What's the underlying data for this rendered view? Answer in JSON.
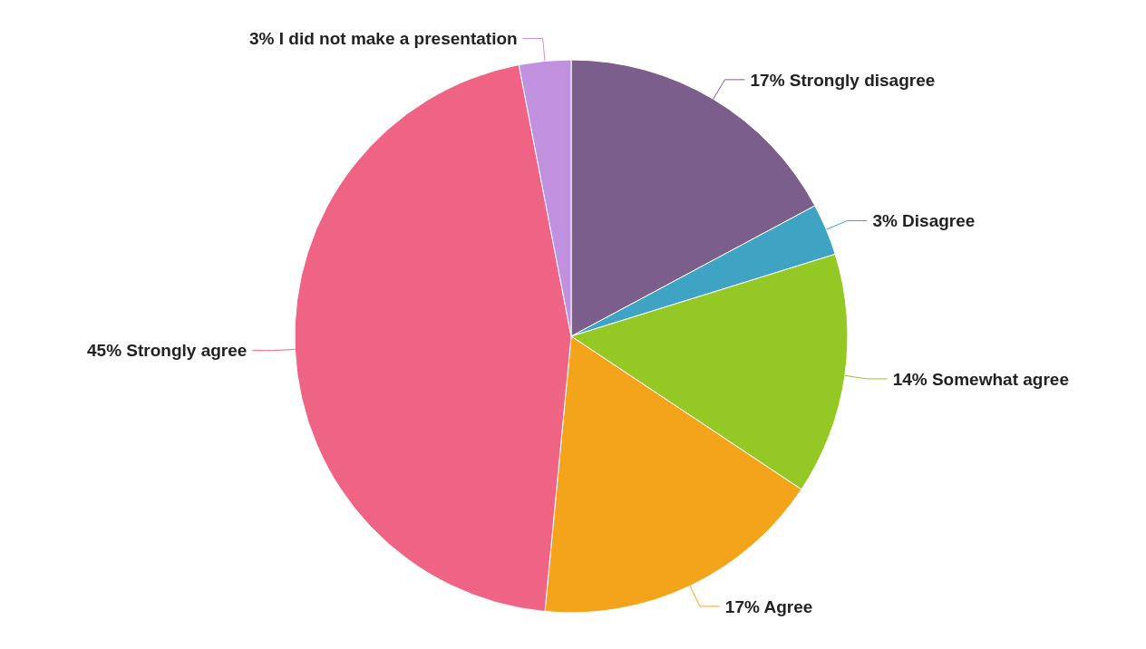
{
  "chart_data": {
    "type": "pie",
    "categories": [
      "Strongly disagree",
      "Disagree",
      "Somewhat agree",
      "Agree",
      "Strongly agree",
      "I did not make a presentation"
    ],
    "values": [
      17,
      3,
      14,
      17,
      45,
      3
    ],
    "value_labels": [
      "17%",
      "3%",
      "14%",
      "17%",
      "45%",
      "3%"
    ],
    "colors": [
      "#7b5e8c",
      "#3fa3c4",
      "#94c824",
      "#f4a41b",
      "#ef6384",
      "#c091de"
    ]
  }
}
